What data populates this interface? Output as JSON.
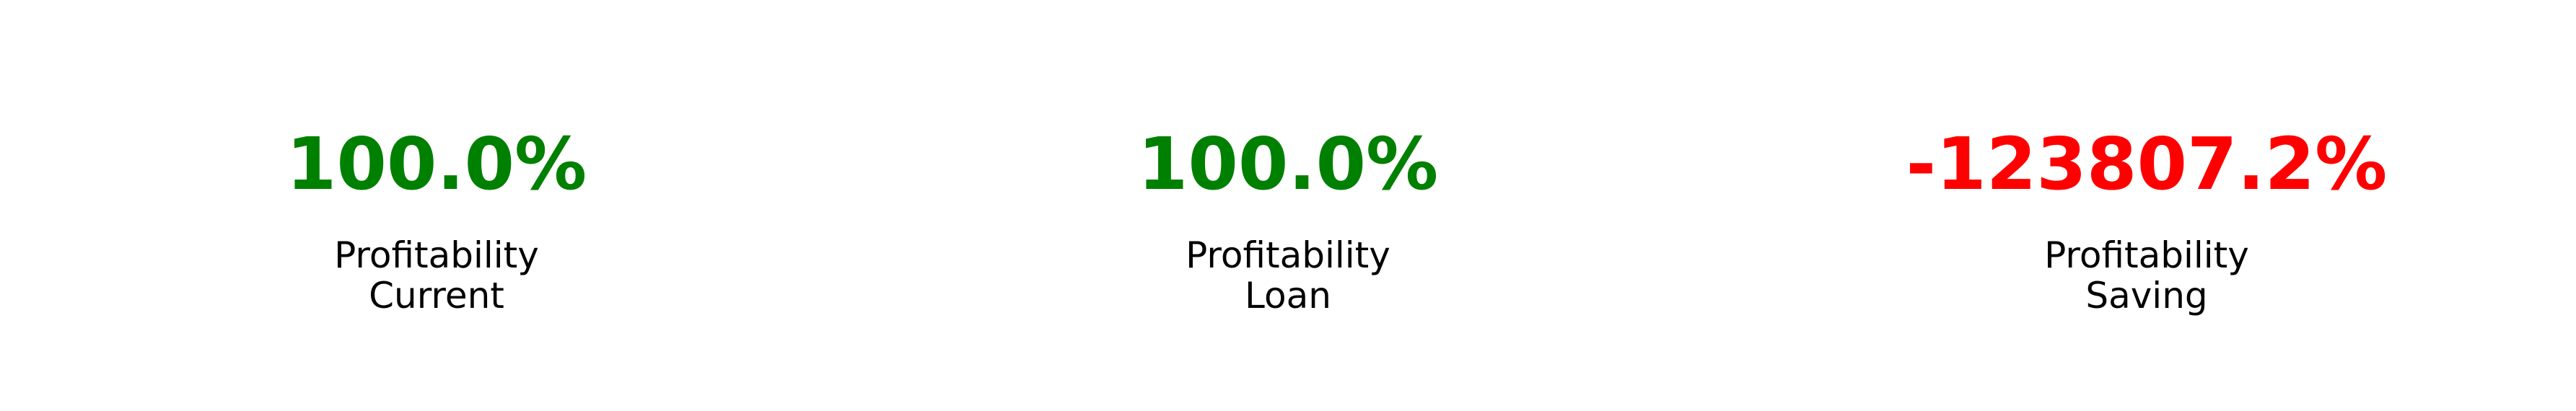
{
  "chart_data": {
    "type": "table",
    "metrics": [
      {
        "value": "100.0%",
        "label_line1": "Profitability",
        "label_line2": "Current",
        "color": "#008000"
      },
      {
        "value": "100.0%",
        "label_line1": "Profitability",
        "label_line2": "Loan",
        "color": "#008000"
      },
      {
        "value": "-123807.2%",
        "label_line1": "Profitability",
        "label_line2": "Saving",
        "color": "#ff0000"
      }
    ]
  }
}
